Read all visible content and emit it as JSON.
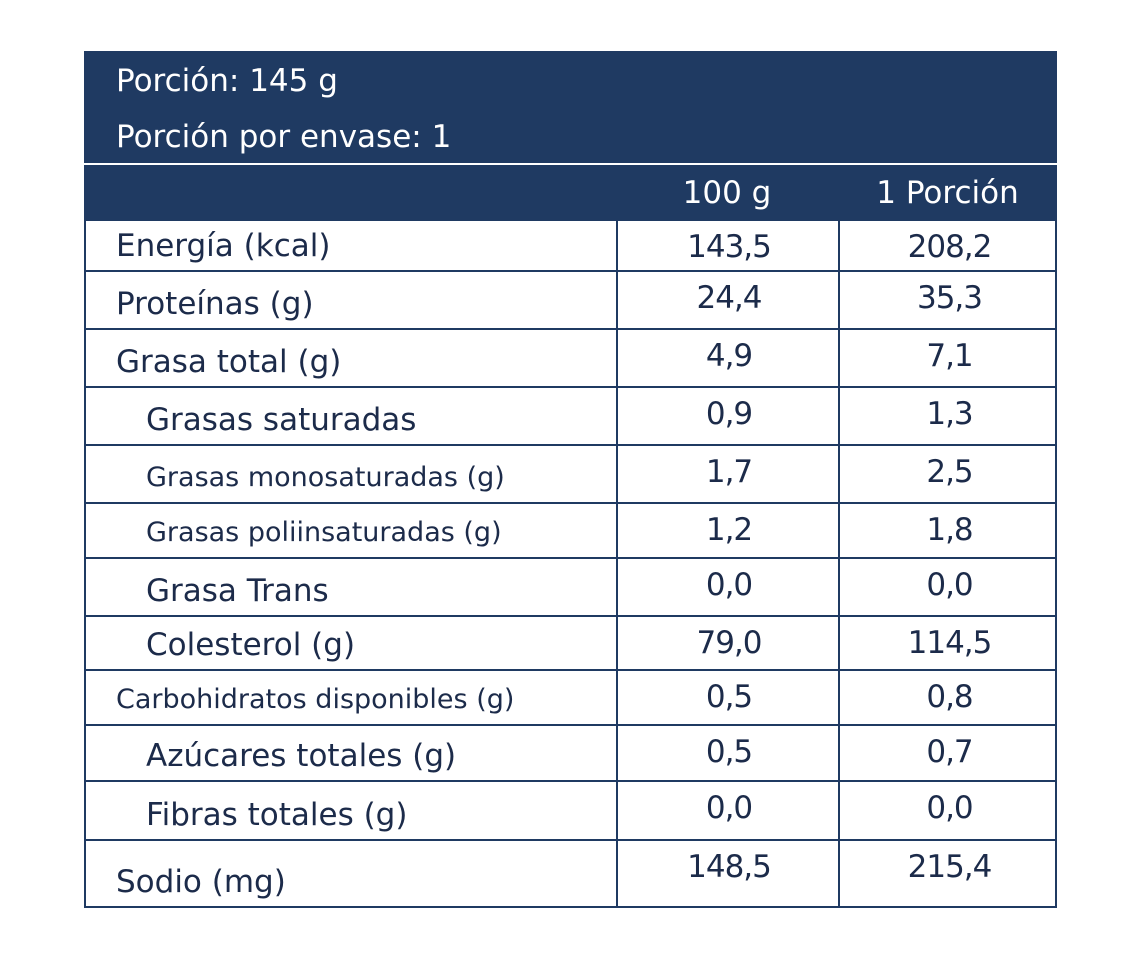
{
  "header": {
    "serving_size": "Porción: 145 g",
    "servings_per_container": "Porción por envase: 1"
  },
  "columns": {
    "per_100": "100 g",
    "per_serving": "1 Porción"
  },
  "rows": [
    {
      "label": "Energía (kcal)",
      "per_100": "143,5",
      "per_serving": "208,2"
    },
    {
      "label": "Proteínas (g)",
      "per_100": "24,4",
      "per_serving": "35,3"
    },
    {
      "label": "Grasa total (g)",
      "per_100": "4,9",
      "per_serving": "7,1"
    },
    {
      "label": "Grasas saturadas",
      "per_100": "0,9",
      "per_serving": "1,3"
    },
    {
      "label": "Grasas monosaturadas (g)",
      "per_100": "1,7",
      "per_serving": "2,5"
    },
    {
      "label": "Grasas poliinsaturadas (g)",
      "per_100": "1,2",
      "per_serving": "1,8"
    },
    {
      "label": "Grasa Trans",
      "per_100": "0,0",
      "per_serving": "0,0"
    },
    {
      "label": "Colesterol (g)",
      "per_100": "79,0",
      "per_serving": "114,5"
    },
    {
      "label": "Carbohidratos disponibles (g)",
      "per_100": "0,5",
      "per_serving": "0,8"
    },
    {
      "label": "Azúcares totales (g)",
      "per_100": "0,5",
      "per_serving": "0,7"
    },
    {
      "label": "Fibras totales (g)",
      "per_100": "0,0",
      "per_serving": "0,0"
    },
    {
      "label": "Sodio (mg)",
      "per_100": "148,5",
      "per_serving": "215,4"
    }
  ],
  "colors": {
    "header_bg": "#1f3a62",
    "text": "#1c2b4a"
  }
}
